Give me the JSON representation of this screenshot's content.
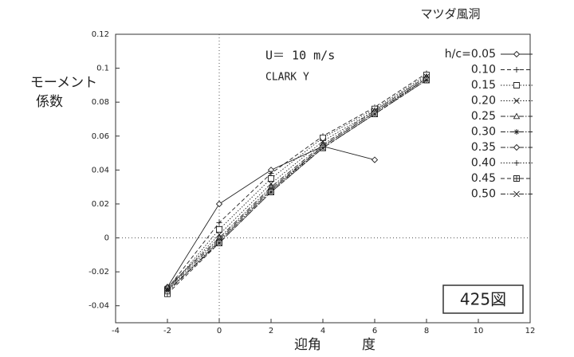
{
  "chart_data": {
    "type": "line",
    "header": "マツダ風洞",
    "annotations": [
      "U＝ 10 m/s",
      "CLARK Y"
    ],
    "ylabel_lines": [
      "モーメント",
      "係数"
    ],
    "xlabel": "迎角　　　度",
    "figure_label": "425図",
    "x": [
      -2,
      0,
      2,
      4,
      6,
      8
    ],
    "xlim": [
      -4,
      12
    ],
    "xticks": [
      -4,
      -2,
      0,
      2,
      4,
      6,
      8,
      10,
      12
    ],
    "ylim": [
      -0.05,
      0.12
    ],
    "yticks": [
      -0.04,
      -0.02,
      0,
      0.02,
      0.04,
      0.06,
      0.08,
      0.1,
      0.12
    ],
    "zero_lines": true,
    "color": "#222222",
    "series": [
      {
        "name": "h/c=0.05",
        "marker": "diamond",
        "line_style": "solid",
        "values": [
          -0.029,
          0.02,
          0.04,
          0.054,
          0.046,
          null
        ]
      },
      {
        "name": "0.10",
        "marker": "plus",
        "line_style": "dash",
        "values": [
          -0.03,
          0.009,
          0.038,
          0.06,
          0.077,
          0.097
        ]
      },
      {
        "name": "0.15",
        "marker": "square",
        "line_style": "dot",
        "values": [
          -0.031,
          0.005,
          0.035,
          0.059,
          0.076,
          0.096
        ]
      },
      {
        "name": "0.20",
        "marker": "cross",
        "line_style": "dot",
        "values": [
          -0.03,
          0.002,
          0.032,
          0.057,
          0.075,
          0.095
        ]
      },
      {
        "name": "0.25",
        "marker": "triangle",
        "line_style": "dashdot",
        "values": [
          -0.029,
          0.0,
          0.03,
          0.055,
          0.075,
          0.095
        ]
      },
      {
        "name": "0.30",
        "marker": "asterisk",
        "line_style": "dashdot",
        "values": [
          -0.03,
          -0.001,
          0.029,
          0.054,
          0.074,
          0.094
        ]
      },
      {
        "name": "0.35",
        "marker": "diamond",
        "line_style": "dashdot",
        "values": [
          -0.032,
          -0.002,
          0.028,
          0.054,
          0.074,
          0.094
        ]
      },
      {
        "name": "0.40",
        "marker": "plus",
        "line_style": "dot",
        "values": [
          -0.031,
          -0.002,
          0.028,
          0.053,
          0.073,
          0.094
        ]
      },
      {
        "name": "0.45",
        "marker": "squareplus",
        "line_style": "dash",
        "values": [
          -0.033,
          -0.003,
          0.027,
          0.053,
          0.073,
          0.093
        ]
      },
      {
        "name": "0.50",
        "marker": "cross",
        "line_style": "dashdot",
        "values": [
          -0.031,
          -0.003,
          0.027,
          0.053,
          0.073,
          0.093
        ]
      }
    ]
  }
}
